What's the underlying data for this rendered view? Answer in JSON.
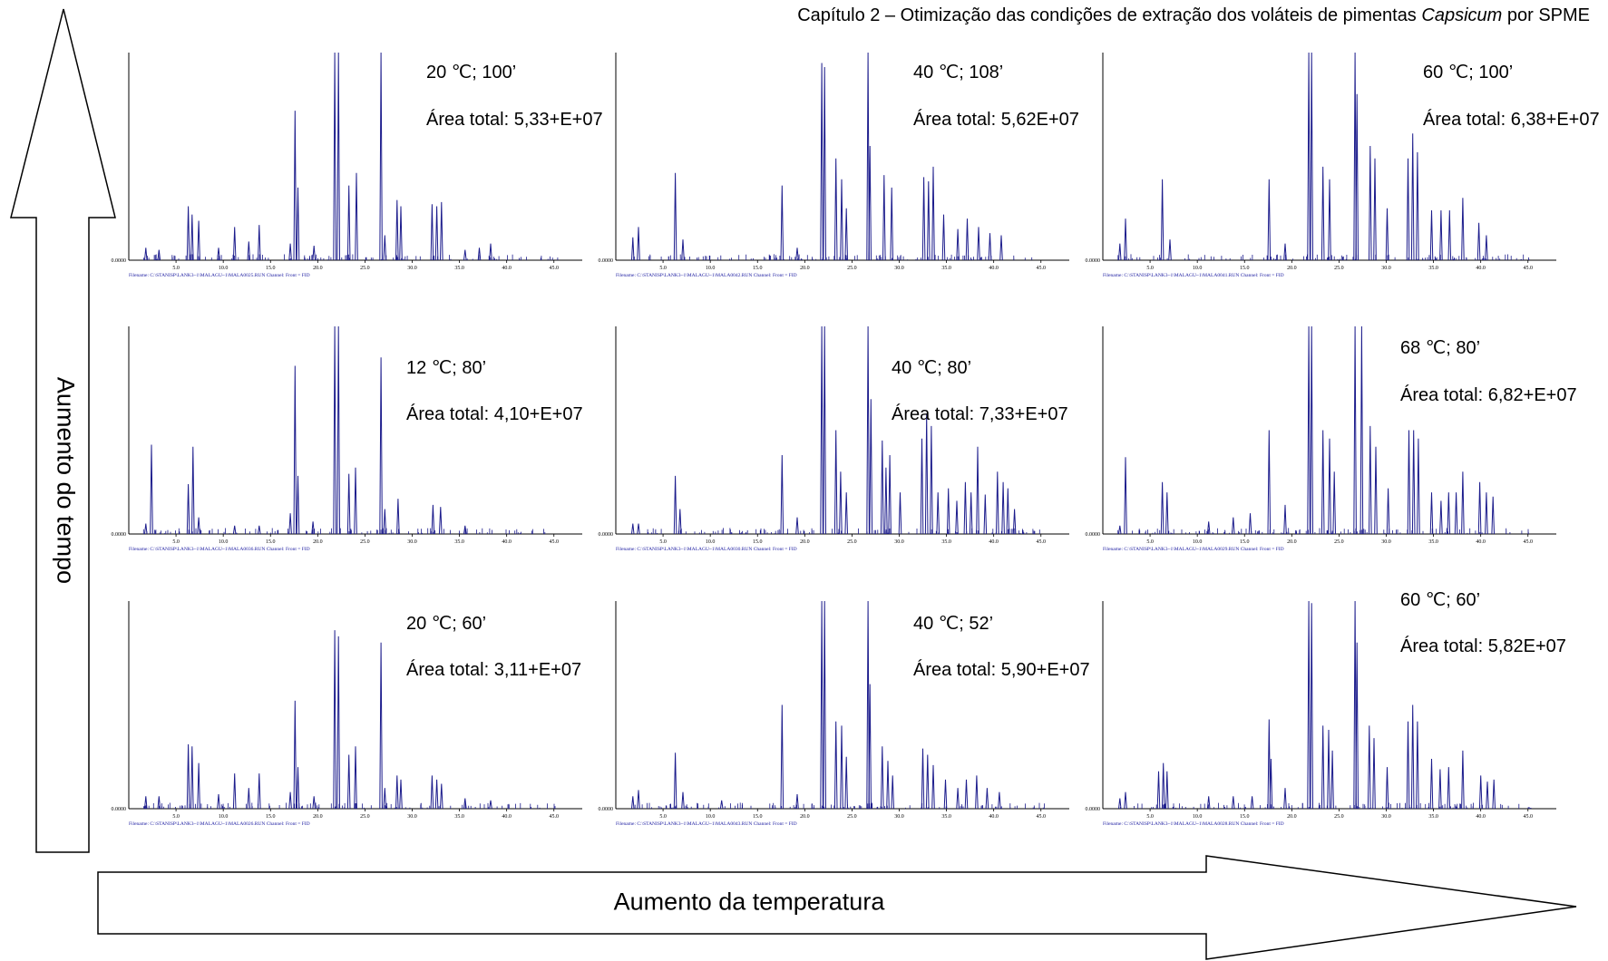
{
  "header": {
    "text_before": "Capítulo 2 – Otimização das condições de extração dos voláteis de pimentas ",
    "text_italic": "Capsicum",
    "text_after": " por SPME"
  },
  "axes": {
    "vertical_arrow_label": "Aumento do tempo",
    "horizontal_arrow_label": "Aumento da temperatura"
  },
  "colors": {
    "trace": "#1c1c8c",
    "baseline": "#000000",
    "filename_text": "#1a1aa0",
    "marker": "#2aa7c9"
  },
  "chart_data": [
    {
      "type": "line",
      "panel": "top-left",
      "condition_label": "20 ℃;  100’",
      "area_label": "Área total: 5,33+E+07",
      "x_ticks": [
        "5.0",
        "10.0",
        "15.0",
        "20.0",
        "25.0",
        "30.0",
        "35.0",
        "40.0",
        "45.0"
      ],
      "y_zero_label": "0.0000",
      "filename": "Filename: C:\\STANISP\\LANK3~1\\MALAGU~1\\MALA0025.RUN  Channel: Front = FID",
      "xlim": [
        0,
        48
      ],
      "ylim": [
        0,
        1
      ],
      "peaks": [
        [
          1.8,
          0.06
        ],
        [
          3.2,
          0.05
        ],
        [
          6.3,
          0.26
        ],
        [
          6.7,
          0.22
        ],
        [
          7.4,
          0.19
        ],
        [
          9.5,
          0.06
        ],
        [
          11.2,
          0.16
        ],
        [
          12.7,
          0.09
        ],
        [
          13.8,
          0.17
        ],
        [
          17.1,
          0.08
        ],
        [
          17.6,
          0.72
        ],
        [
          17.9,
          0.35
        ],
        [
          19.6,
          0.07
        ],
        [
          21.8,
          1.0
        ],
        [
          22.2,
          1.0
        ],
        [
          23.3,
          0.36
        ],
        [
          24.1,
          0.42
        ],
        [
          26.7,
          1.0
        ],
        [
          27.1,
          0.12
        ],
        [
          28.4,
          0.29
        ],
        [
          28.8,
          0.26
        ],
        [
          32.1,
          0.27
        ],
        [
          32.6,
          0.26
        ],
        [
          33.1,
          0.28
        ],
        [
          35.6,
          0.05
        ],
        [
          37.1,
          0.06
        ],
        [
          38.3,
          0.08
        ]
      ]
    },
    {
      "type": "line",
      "panel": "top-middle",
      "condition_label": "40 ℃;  108’",
      "area_label": "Área total: 5,62E+07",
      "x_ticks": [
        "5.0",
        "10.0",
        "15.0",
        "20.0",
        "25.0",
        "30.0",
        "35.0",
        "40.0",
        "45.0"
      ],
      "y_zero_label": "0.0000",
      "filename": "Filename: C:\\STANISP\\LANK3~1\\MALAGU~1\\MALA0042.RUN  Channel: Front = FID",
      "xlim": [
        0,
        48
      ],
      "ylim": [
        0,
        1
      ],
      "peaks": [
        [
          1.8,
          0.11
        ],
        [
          2.4,
          0.16
        ],
        [
          6.3,
          0.42
        ],
        [
          7.1,
          0.1
        ],
        [
          17.6,
          0.36
        ],
        [
          19.2,
          0.06
        ],
        [
          21.8,
          0.95
        ],
        [
          22.1,
          0.93
        ],
        [
          23.3,
          0.49
        ],
        [
          23.9,
          0.39
        ],
        [
          24.4,
          0.25
        ],
        [
          26.7,
          1.0
        ],
        [
          26.9,
          0.55
        ],
        [
          28.4,
          0.41
        ],
        [
          29.2,
          0.35
        ],
        [
          32.6,
          0.4
        ],
        [
          33.1,
          0.38
        ],
        [
          33.6,
          0.45
        ],
        [
          34.7,
          0.22
        ],
        [
          36.2,
          0.15
        ],
        [
          37.2,
          0.2
        ],
        [
          38.4,
          0.16
        ],
        [
          39.6,
          0.13
        ],
        [
          40.8,
          0.12
        ]
      ]
    },
    {
      "type": "line",
      "panel": "top-right",
      "condition_label": "60 ℃;  100’",
      "area_label": "Área total: 6,38+E+07",
      "x_ticks": [
        "5.0",
        "10.0",
        "15.0",
        "20.0",
        "25.0",
        "30.0",
        "35.0",
        "40.0",
        "45.0"
      ],
      "y_zero_label": "0.0000",
      "filename": "Filename: C:\\STANISP\\LANK3~1\\MALAGU~1\\MALA0041.RUN  Channel: Front = FID",
      "xlim": [
        0,
        48
      ],
      "ylim": [
        0,
        1
      ],
      "peaks": [
        [
          1.8,
          0.08
        ],
        [
          2.4,
          0.2
        ],
        [
          6.3,
          0.39
        ],
        [
          7.1,
          0.1
        ],
        [
          17.6,
          0.39
        ],
        [
          19.3,
          0.08
        ],
        [
          21.8,
          1.0
        ],
        [
          22.1,
          1.0
        ],
        [
          23.3,
          0.45
        ],
        [
          24.0,
          0.39
        ],
        [
          26.7,
          1.0
        ],
        [
          26.9,
          0.8
        ],
        [
          28.3,
          0.55
        ],
        [
          28.8,
          0.49
        ],
        [
          30.1,
          0.25
        ],
        [
          32.3,
          0.49
        ],
        [
          32.8,
          0.61
        ],
        [
          33.3,
          0.52
        ],
        [
          34.8,
          0.24
        ],
        [
          35.8,
          0.24
        ],
        [
          36.7,
          0.24
        ],
        [
          38.1,
          0.3
        ],
        [
          39.8,
          0.18
        ],
        [
          40.6,
          0.12
        ]
      ]
    },
    {
      "type": "line",
      "panel": "middle-left",
      "condition_label": "12 ℃;  80’",
      "area_label": "Área total: 4,10+E+07",
      "x_ticks": [
        "5.0",
        "10.0",
        "15.0",
        "20.0",
        "25.0",
        "30.0",
        "35.0",
        "40.0",
        "45.0"
      ],
      "y_zero_label": "0.0000",
      "filename": "Filename: C:\\STANISP\\LANK3~1\\MALAGU~1\\MALA0036.RUN  Channel: Front = FID",
      "xlim": [
        0,
        48
      ],
      "ylim": [
        0,
        1
      ],
      "peaks": [
        [
          1.8,
          0.05
        ],
        [
          2.4,
          0.43
        ],
        [
          6.3,
          0.24
        ],
        [
          6.8,
          0.42
        ],
        [
          7.4,
          0.08
        ],
        [
          11.2,
          0.04
        ],
        [
          13.8,
          0.04
        ],
        [
          17.1,
          0.1
        ],
        [
          17.6,
          0.81
        ],
        [
          17.9,
          0.28
        ],
        [
          19.5,
          0.06
        ],
        [
          21.8,
          1.0
        ],
        [
          22.2,
          1.0
        ],
        [
          23.3,
          0.29
        ],
        [
          24.0,
          0.32
        ],
        [
          26.7,
          0.85
        ],
        [
          27.1,
          0.12
        ],
        [
          28.5,
          0.17
        ],
        [
          32.2,
          0.14
        ],
        [
          33.0,
          0.13
        ],
        [
          35.6,
          0.04
        ]
      ]
    },
    {
      "type": "line",
      "panel": "middle-middle",
      "condition_label": "40 ℃;  80’",
      "area_label": "Área total: 7,33+E+07",
      "x_ticks": [
        "5.0",
        "10.0",
        "15.0",
        "20.0",
        "25.0",
        "30.0",
        "35.0",
        "40.0",
        "45.0"
      ],
      "y_zero_label": "0.0000",
      "filename": "Filename: C:\\STANISP\\LANK3~1\\MALAGU~1\\MALA0030.RUN  Channel: Front = FID",
      "xlim": [
        0,
        48
      ],
      "ylim": [
        0,
        1
      ],
      "peaks": [
        [
          1.8,
          0.05
        ],
        [
          2.4,
          0.05
        ],
        [
          6.3,
          0.28
        ],
        [
          6.8,
          0.12
        ],
        [
          17.6,
          0.38
        ],
        [
          19.2,
          0.08
        ],
        [
          21.8,
          1.0
        ],
        [
          22.1,
          1.0
        ],
        [
          23.3,
          0.5
        ],
        [
          23.8,
          0.3
        ],
        [
          24.4,
          0.2
        ],
        [
          26.7,
          1.0
        ],
        [
          27.0,
          0.65
        ],
        [
          28.2,
          0.45
        ],
        [
          28.6,
          0.32
        ],
        [
          29.0,
          0.38
        ],
        [
          30.1,
          0.2
        ],
        [
          32.4,
          0.46
        ],
        [
          32.9,
          0.58
        ],
        [
          33.4,
          0.52
        ],
        [
          34.1,
          0.2
        ],
        [
          35.2,
          0.22
        ],
        [
          36.1,
          0.16
        ],
        [
          37.0,
          0.25
        ],
        [
          37.6,
          0.2
        ],
        [
          38.3,
          0.42
        ],
        [
          39.1,
          0.19
        ],
        [
          40.4,
          0.3
        ],
        [
          41.0,
          0.25
        ],
        [
          41.5,
          0.22
        ],
        [
          42.2,
          0.12
        ]
      ]
    },
    {
      "type": "line",
      "panel": "middle-right",
      "condition_label": "68 ℃;  80’",
      "area_label": "Área total: 6,82+E+07",
      "x_ticks": [
        "5.0",
        "10.0",
        "15.0",
        "20.0",
        "25.0",
        "30.0",
        "35.0",
        "40.0",
        "45.0"
      ],
      "y_zero_label": "0.0000",
      "filename": "Filename: C:\\STANISP\\LANK3~1\\MALAGU~1\\MALA0029.RUN  Channel: Front = FID",
      "xlim": [
        0,
        48
      ],
      "ylim": [
        0,
        1
      ],
      "peaks": [
        [
          1.8,
          0.04
        ],
        [
          2.4,
          0.37
        ],
        [
          6.3,
          0.25
        ],
        [
          6.8,
          0.2
        ],
        [
          11.2,
          0.06
        ],
        [
          13.8,
          0.08
        ],
        [
          15.6,
          0.1
        ],
        [
          17.6,
          0.5
        ],
        [
          19.3,
          0.14
        ],
        [
          21.8,
          1.0
        ],
        [
          22.1,
          1.0
        ],
        [
          23.3,
          0.5
        ],
        [
          24.0,
          0.46
        ],
        [
          24.5,
          0.3
        ],
        [
          26.7,
          1.0
        ],
        [
          27.4,
          1.0
        ],
        [
          28.3,
          0.52
        ],
        [
          28.9,
          0.42
        ],
        [
          30.2,
          0.22
        ],
        [
          32.4,
          0.5
        ],
        [
          32.9,
          0.5
        ],
        [
          33.4,
          0.46
        ],
        [
          34.8,
          0.2
        ],
        [
          35.8,
          0.16
        ],
        [
          36.6,
          0.2
        ],
        [
          37.4,
          0.2
        ],
        [
          38.1,
          0.3
        ],
        [
          39.9,
          0.25
        ],
        [
          40.6,
          0.2
        ],
        [
          41.3,
          0.18
        ]
      ]
    },
    {
      "type": "line",
      "panel": "bottom-left",
      "condition_label": "20 ℃;  60’",
      "area_label": "Área total: 3,11+E+07",
      "x_ticks": [
        "5.0",
        "10.0",
        "15.0",
        "20.0",
        "25.0",
        "30.0",
        "35.0",
        "40.0",
        "45.0"
      ],
      "y_zero_label": "0.0000",
      "filename": "Filename: C:\\STANISP\\LANK3~1\\MALAGU~1\\MALA0026.RUN  Channel: Front = FID",
      "xlim": [
        0,
        48
      ],
      "ylim": [
        0,
        1
      ],
      "peaks": [
        [
          1.8,
          0.06
        ],
        [
          3.2,
          0.06
        ],
        [
          6.3,
          0.31
        ],
        [
          6.7,
          0.3
        ],
        [
          7.4,
          0.22
        ],
        [
          9.5,
          0.07
        ],
        [
          11.2,
          0.17
        ],
        [
          12.7,
          0.1
        ],
        [
          13.8,
          0.17
        ],
        [
          17.1,
          0.08
        ],
        [
          17.6,
          0.52
        ],
        [
          17.9,
          0.2
        ],
        [
          19.6,
          0.06
        ],
        [
          21.8,
          0.86
        ],
        [
          22.2,
          0.83
        ],
        [
          23.3,
          0.26
        ],
        [
          24.0,
          0.3
        ],
        [
          26.7,
          0.8
        ],
        [
          27.1,
          0.1
        ],
        [
          28.4,
          0.16
        ],
        [
          28.8,
          0.14
        ],
        [
          32.1,
          0.16
        ],
        [
          32.6,
          0.14
        ],
        [
          33.1,
          0.12
        ],
        [
          35.6,
          0.05
        ],
        [
          38.3,
          0.04
        ]
      ]
    },
    {
      "type": "line",
      "panel": "bottom-middle",
      "condition_label": "40 ℃;  52’",
      "area_label": "Área total: 5,90+E+07",
      "x_ticks": [
        "5.0",
        "10.0",
        "15.0",
        "20.0",
        "25.0",
        "30.0",
        "35.0",
        "40.0",
        "45.0"
      ],
      "y_zero_label": "0.0000",
      "filename": "Filename: C:\\STANISP\\LANK3~1\\MALAGU~1\\MALA0043.RUN  Channel: Front = FID",
      "xlim": [
        0,
        48
      ],
      "ylim": [
        0,
        1
      ],
      "peaks": [
        [
          1.8,
          0.06
        ],
        [
          2.4,
          0.09
        ],
        [
          6.3,
          0.27
        ],
        [
          7.1,
          0.08
        ],
        [
          11.2,
          0.04
        ],
        [
          17.6,
          0.5
        ],
        [
          19.2,
          0.07
        ],
        [
          21.8,
          1.0
        ],
        [
          22.1,
          1.0
        ],
        [
          23.3,
          0.42
        ],
        [
          23.9,
          0.4
        ],
        [
          24.4,
          0.25
        ],
        [
          26.7,
          1.0
        ],
        [
          26.9,
          0.6
        ],
        [
          28.2,
          0.3
        ],
        [
          28.8,
          0.23
        ],
        [
          29.3,
          0.16
        ],
        [
          32.5,
          0.29
        ],
        [
          33.0,
          0.26
        ],
        [
          33.6,
          0.21
        ],
        [
          34.9,
          0.14
        ],
        [
          36.2,
          0.1
        ],
        [
          37.1,
          0.14
        ],
        [
          38.2,
          0.16
        ],
        [
          39.3,
          0.1
        ],
        [
          40.6,
          0.08
        ]
      ]
    },
    {
      "type": "line",
      "panel": "bottom-right",
      "condition_label": "60 ℃;  60’",
      "area_label": "Área total: 5,82E+07",
      "x_ticks": [
        "5.0",
        "10.0",
        "15.0",
        "20.0",
        "25.0",
        "30.0",
        "35.0",
        "40.0",
        "45.0"
      ],
      "y_zero_label": "0.0000",
      "filename": "Filename: C:\\STANISP\\LANK3~1\\MALAGU~1\\MALA0028.RUN  Channel: Front = FID",
      "xlim": [
        0,
        48
      ],
      "ylim": [
        0,
        1
      ],
      "peaks": [
        [
          1.8,
          0.05
        ],
        [
          2.4,
          0.08
        ],
        [
          5.9,
          0.18
        ],
        [
          6.4,
          0.22
        ],
        [
          6.8,
          0.18
        ],
        [
          11.2,
          0.06
        ],
        [
          13.8,
          0.06
        ],
        [
          15.8,
          0.06
        ],
        [
          17.6,
          0.43
        ],
        [
          17.8,
          0.24
        ],
        [
          19.3,
          0.1
        ],
        [
          21.8,
          1.0
        ],
        [
          22.1,
          0.99
        ],
        [
          23.3,
          0.4
        ],
        [
          23.9,
          0.38
        ],
        [
          24.3,
          0.28
        ],
        [
          26.7,
          1.0
        ],
        [
          26.9,
          0.8
        ],
        [
          28.2,
          0.4
        ],
        [
          28.7,
          0.34
        ],
        [
          30.1,
          0.2
        ],
        [
          32.3,
          0.42
        ],
        [
          32.8,
          0.5
        ],
        [
          33.3,
          0.42
        ],
        [
          34.8,
          0.24
        ],
        [
          35.7,
          0.19
        ],
        [
          36.6,
          0.2
        ],
        [
          38.1,
          0.28
        ],
        [
          40.0,
          0.16
        ],
        [
          40.7,
          0.13
        ],
        [
          41.4,
          0.14
        ]
      ]
    }
  ]
}
